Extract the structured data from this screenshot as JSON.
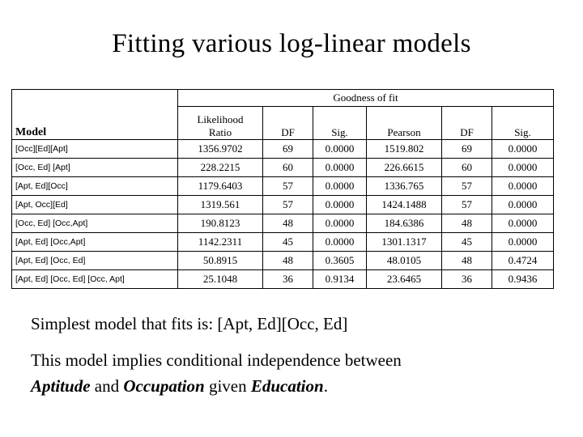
{
  "slide": {
    "title": "Fitting various log-linear models",
    "table": {
      "model_header": "Model",
      "spanning_header": "Goodness of fit",
      "sub_headers": [
        "Likelihood Ratio",
        "DF",
        "Sig.",
        "Pearson",
        "DF",
        "Sig."
      ],
      "rows": [
        [
          "[Occ][Ed][Apt]",
          "1356.9702",
          "69",
          "0.0000",
          "1519.802",
          "69",
          "0.0000"
        ],
        [
          "[Occ, Ed] [Apt]",
          "228.2215",
          "60",
          "0.0000",
          "226.6615",
          "60",
          "0.0000"
        ],
        [
          "[Apt, Ed][Occ]",
          "1179.6403",
          "57",
          "0.0000",
          "1336.765",
          "57",
          "0.0000"
        ],
        [
          "[Apt, Occ][Ed]",
          "1319.561",
          "57",
          "0.0000",
          "1424.1488",
          "57",
          "0.0000"
        ],
        [
          "[Occ, Ed] [Occ,Apt]",
          "190.8123",
          "48",
          "0.0000",
          "184.6386",
          "48",
          "0.0000"
        ],
        [
          "[Apt, Ed] [Occ,Apt]",
          "1142.2311",
          "45",
          "0.0000",
          "1301.1317",
          "45",
          "0.0000"
        ],
        [
          "[Apt, Ed] [Occ, Ed]",
          "50.8915",
          "48",
          "0.3605",
          "48.0105",
          "48",
          "0.4724"
        ],
        [
          "[Apt, Ed] [Occ, Ed] [Occ, Apt]",
          "25.1048",
          "36",
          "0.9134",
          "23.6465",
          "36",
          "0.9436"
        ]
      ]
    },
    "paragraph1": "Simplest model that fits is: [Apt, Ed][Occ, Ed]",
    "paragraph2": {
      "line1": "This model implies conditional independence between",
      "term1": "Aptitude",
      "mid1": " and ",
      "term2": "Occupation",
      "mid2": " given ",
      "term3": "Education",
      "period": "."
    }
  }
}
